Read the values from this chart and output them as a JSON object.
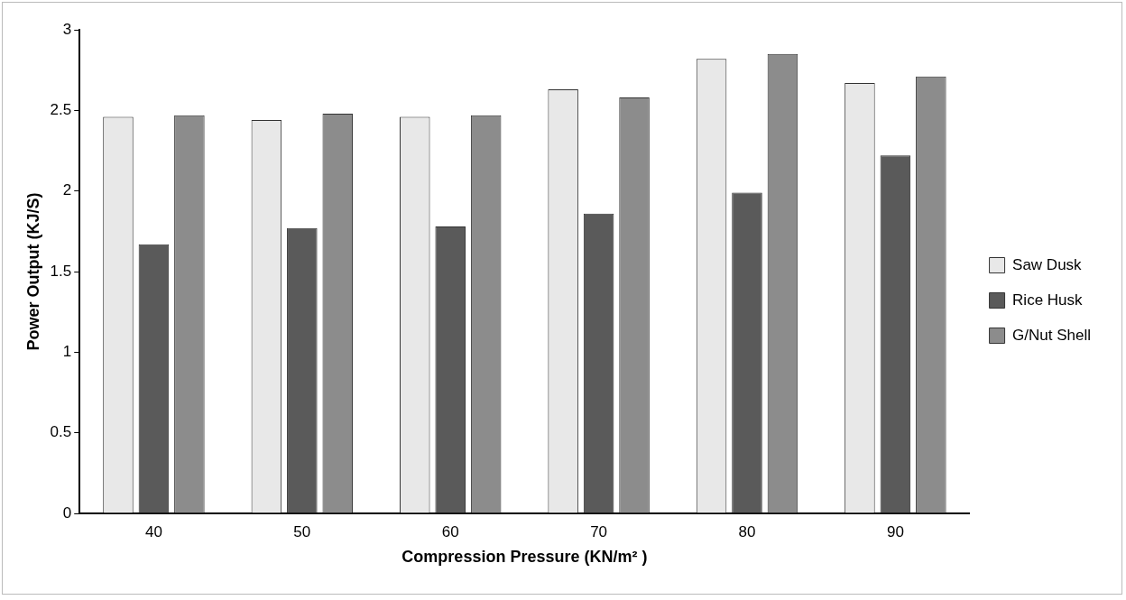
{
  "chart_data": {
    "type": "bar",
    "xlabel": "Compression Pressure (KN/m² )",
    "ylabel": "Power Output (KJ/S)",
    "categories": [
      "40",
      "50",
      "60",
      "70",
      "80",
      "90"
    ],
    "series": [
      {
        "name": "Saw Dusk",
        "color": "#e8e8e8",
        "values": [
          2.46,
          2.44,
          2.46,
          2.63,
          2.82,
          2.67
        ]
      },
      {
        "name": "Rice Husk",
        "color": "#5a5a5a",
        "values": [
          1.67,
          1.77,
          1.78,
          1.86,
          1.99,
          2.22
        ]
      },
      {
        "name": "G/Nut Shell",
        "color": "#8c8c8c",
        "values": [
          2.47,
          2.48,
          2.47,
          2.58,
          2.85,
          2.71
        ]
      }
    ],
    "ylim": [
      0,
      3
    ],
    "yticks": [
      0,
      0.5,
      1,
      1.5,
      2,
      2.5,
      3
    ],
    "grid": false,
    "legend": "right"
  }
}
